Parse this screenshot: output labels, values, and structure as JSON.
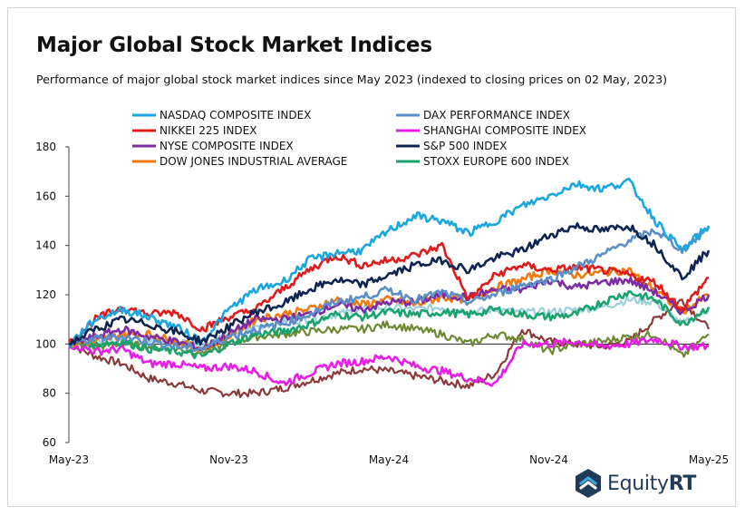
{
  "header": {
    "title": "Major Global Stock Market Indices",
    "subtitle": "Performance of major global stock market indices since May 2023 (indexed to closing prices on 02 May, 2023)"
  },
  "logo": {
    "brand_a": "Equity",
    "brand_b": "RT",
    "icon": "equityrt-logo-icon"
  },
  "chart_data": {
    "type": "line",
    "title": "Major Global Stock Market Indices",
    "subtitle": "Performance of major global stock market indices since May 2023 (indexed to closing prices on 02 May, 2023)",
    "xlabel": "",
    "ylabel": "",
    "x_ticks": [
      "May-23",
      "Nov-23",
      "May-24",
      "Nov-24",
      "May-25"
    ],
    "ylim": [
      60,
      180
    ],
    "y_ticks": [
      60,
      80,
      100,
      120,
      140,
      160,
      180
    ],
    "reference_line": 100,
    "grid": false,
    "legend_position": "top",
    "x": [
      "2023-05",
      "2023-06",
      "2023-07",
      "2023-08",
      "2023-09",
      "2023-10",
      "2023-11",
      "2023-12",
      "2024-01",
      "2024-02",
      "2024-03",
      "2024-04",
      "2024-05",
      "2024-06",
      "2024-07",
      "2024-08",
      "2024-09",
      "2024-10",
      "2024-11",
      "2024-12",
      "2025-01",
      "2025-02",
      "2025-03",
      "2025-04",
      "2025-05"
    ],
    "series": [
      {
        "name": "NASDAQ COMPOSITE INDEX",
        "color": "#1aa7e0",
        "values": [
          100,
          110,
          114,
          111,
          107,
          101,
          114,
          122,
          125,
          134,
          137,
          138,
          146,
          152,
          150,
          145,
          150,
          156,
          160,
          165,
          163,
          166,
          150,
          138,
          148
        ]
      },
      {
        "name": "DAX PERFORMANCE INDEX",
        "color": "#5b8fc7",
        "values": [
          100,
          102,
          103,
          101,
          99,
          98,
          103,
          106,
          108,
          112,
          117,
          119,
          122,
          118,
          121,
          117,
          120,
          124,
          126,
          131,
          136,
          142,
          146,
          138,
          147
        ]
      },
      {
        "name": "NIKKEI 225 INDEX",
        "color": "#e01b1b",
        "values": [
          100,
          110,
          115,
          112,
          113,
          106,
          111,
          114,
          122,
          130,
          136,
          132,
          134,
          136,
          140,
          118,
          128,
          132,
          130,
          131,
          130,
          128,
          125,
          114,
          127
        ]
      },
      {
        "name": "SHANGHAI COMPOSITE INDEX",
        "color": "#e61ee6",
        "values": [
          100,
          97,
          98,
          92,
          92,
          90,
          91,
          89,
          84,
          88,
          92,
          93,
          95,
          91,
          89,
          86,
          84,
          100,
          100,
          101,
          99,
          100,
          102,
          99,
          99
        ]
      },
      {
        "name": "NYSE COMPOSITE INDEX",
        "color": "#7d2ca3",
        "values": [
          100,
          103,
          106,
          103,
          101,
          98,
          104,
          110,
          110,
          112,
          116,
          114,
          117,
          117,
          120,
          119,
          122,
          122,
          126,
          123,
          125,
          126,
          121,
          113,
          120
        ]
      },
      {
        "name": "S&P 500 INDEX",
        "color": "#0e2453",
        "values": [
          100,
          106,
          110,
          108,
          105,
          101,
          107,
          113,
          116,
          122,
          126,
          124,
          128,
          132,
          134,
          130,
          135,
          138,
          144,
          148,
          146,
          148,
          140,
          127,
          138
        ]
      },
      {
        "name": "DOW JONES INDUSTRIAL AVERAGE",
        "color": "#f07a10",
        "values": [
          100,
          101,
          104,
          104,
          101,
          98,
          103,
          110,
          112,
          114,
          118,
          116,
          118,
          116,
          119,
          118,
          123,
          126,
          130,
          128,
          129,
          130,
          122,
          113,
          120
        ]
      },
      {
        "name": "STOXX EUROPE 600 INDEX",
        "color": "#1aa36f",
        "values": [
          100,
          100,
          101,
          98,
          97,
          95,
          100,
          104,
          105,
          108,
          112,
          111,
          113,
          112,
          113,
          112,
          114,
          112,
          111,
          112,
          117,
          121,
          118,
          108,
          115
        ]
      }
    ],
    "unlabeled_series": [
      {
        "color": "#8b3a3a",
        "values": [
          100,
          95,
          92,
          86,
          84,
          81,
          80,
          80,
          82,
          85,
          88,
          90,
          89,
          87,
          85,
          83,
          88,
          106,
          101,
          100,
          99,
          101,
          110,
          118,
          106
        ]
      },
      {
        "color": "#9ccfdc",
        "values": [
          100,
          101,
          102,
          101,
          101,
          100,
          104,
          107,
          109,
          110,
          112,
          114,
          115,
          114,
          115,
          113,
          114,
          113,
          113,
          114,
          115,
          118,
          117,
          108,
          114
        ]
      },
      {
        "color": "#6d8a32",
        "values": [
          100,
          99,
          100,
          99,
          98,
          97,
          100,
          103,
          104,
          105,
          106,
          106,
          108,
          106,
          104,
          100,
          104,
          102,
          97,
          100,
          101,
          103,
          104,
          95,
          104
        ]
      }
    ]
  }
}
